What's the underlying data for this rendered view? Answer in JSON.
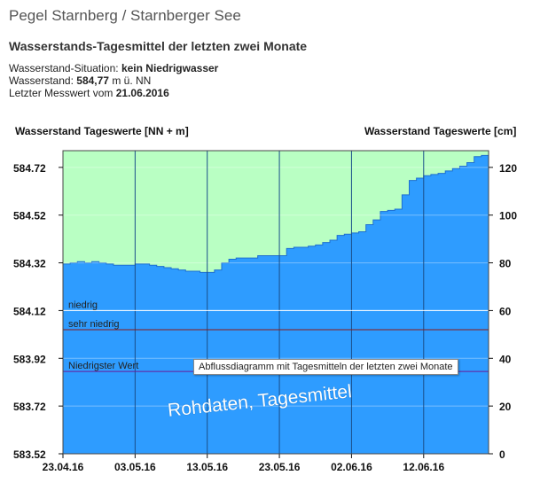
{
  "page": {
    "title": "Pegel Starnberg / Starnberger See",
    "section_title": "Wasserstands-Tagesmittel der letzten zwei Monate"
  },
  "info": {
    "situation_label": "Wasserstand-Situation:",
    "situation_value": "kein Niedrigwasser",
    "level_label": "Wasserstand:",
    "level_value": "584,77",
    "level_unit": "m ü. NN",
    "last_label": "Letzter Messwert vom",
    "last_value": "21.06.2016"
  },
  "chart_data": {
    "type": "area",
    "left_axis_label": "Wasserstand Tageswerte [NN + m]",
    "right_axis_label": "Wasserstand Tageswerte [cm]",
    "x_tick_labels": [
      "23.04.16",
      "03.05.16",
      "13.05.16",
      "23.05.16",
      "02.06.16",
      "12.06.16"
    ],
    "x_start": "2016-04-23",
    "left_ticks": [
      "584.72",
      "584.52",
      "584.32",
      "584.12",
      "583.92",
      "583.72",
      "583.52"
    ],
    "right_ticks": [
      "120",
      "100",
      "80",
      "60",
      "40",
      "20",
      "0"
    ],
    "ylim_left": [
      583.52,
      584.79
    ],
    "ylim_right": [
      0,
      127
    ],
    "series": [
      {
        "values": [
          79.5,
          80.0,
          80.5,
          80.0,
          80.5,
          80.0,
          79.5,
          79.0,
          79.0,
          79.0,
          79.5,
          79.5,
          79.0,
          78.5,
          78.0,
          77.5,
          77.0,
          76.5,
          76.5,
          76.0,
          76.0,
          77.0,
          80.0,
          81.5,
          82.0,
          82.0,
          82.0,
          83.0,
          83.0,
          83.0,
          83.0,
          86.0,
          86.5,
          86.5,
          87.0,
          87.5,
          88.5,
          89.5,
          91.5,
          92.0,
          92.5,
          93.0,
          96.0,
          98.0,
          101.5,
          102.0,
          102.5,
          108.5,
          114.5,
          115.5,
          116.5,
          117.0,
          117.5,
          118.5,
          119.5,
          120.5,
          122.0,
          124.5,
          125.0
        ]
      }
    ],
    "reference_lines": [
      {
        "label": "niedrig",
        "value_cm": 60,
        "color": "#ffffff"
      },
      {
        "label": "sehr niedrig",
        "value_cm": 52,
        "color": "#8b1a1a"
      },
      {
        "label": "Niedrigster Wert",
        "value_cm": 34.5,
        "color": "#6a1b9a"
      }
    ],
    "colors": {
      "fill": "#2e9cff",
      "above": "#b9ffc3",
      "grid": "#1a4f8a"
    },
    "grid": true,
    "tooltip": "Abflussdiagramm mit Tagesmitteln der letzten zwei Monate",
    "watermark": "Rohdaten, Tagesmittel"
  }
}
